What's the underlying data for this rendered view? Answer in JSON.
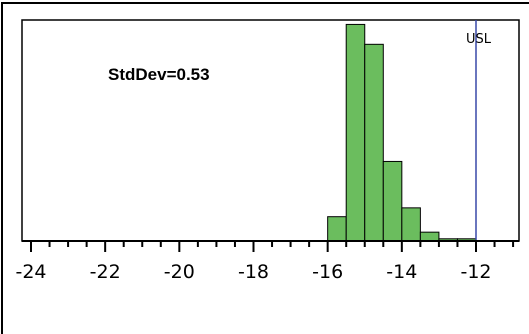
{
  "chart_data": {
    "type": "bar",
    "subtype": "histogram",
    "annotation": "StdDev=0.53",
    "xlim": [
      -24.2,
      -10.6
    ],
    "ylim": [
      0,
      1.0
    ],
    "grid": false,
    "x_ticks": [
      -24,
      -22,
      -20,
      -18,
      -16,
      -14,
      -12
    ],
    "x_tick_labels": [
      "-24",
      "-22",
      "-20",
      "-18",
      "-16",
      "-14",
      "-12"
    ],
    "bin_width": 0.5,
    "bins": [
      {
        "x0": -16.0,
        "x1": -15.5,
        "value": 0.11
      },
      {
        "x0": -15.5,
        "x1": -15.0,
        "value": 0.98
      },
      {
        "x0": -15.0,
        "x1": -14.5,
        "value": 0.89
      },
      {
        "x0": -14.5,
        "x1": -14.0,
        "value": 0.36
      },
      {
        "x0": -14.0,
        "x1": -13.5,
        "value": 0.15
      },
      {
        "x0": -13.5,
        "x1": -13.0,
        "value": 0.04
      },
      {
        "x0": -13.0,
        "x1": -12.5,
        "value": 0.01
      },
      {
        "x0": -12.5,
        "x1": -12.0,
        "value": 0.01
      }
    ],
    "reference_line": {
      "label": "USL",
      "x": -12.0,
      "color": "#3848a8"
    },
    "colors": {
      "bar_fill": "#6bbd5e",
      "bar_stroke": "#000000"
    }
  }
}
